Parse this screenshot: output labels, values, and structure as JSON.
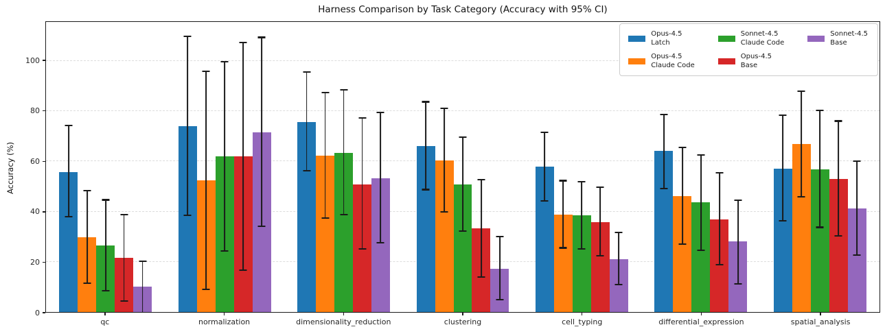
{
  "chart_data": {
    "type": "bar",
    "title": "Harness Comparison by Task Category (Accuracy with 95% CI)",
    "ylabel": "Accuracy (%)",
    "xlabel": "",
    "ylim": [
      0,
      115.5
    ],
    "yticks": [
      0,
      20,
      40,
      60,
      80,
      100
    ],
    "grid": "horizontal-dashed",
    "legend_position": "upper-right-inside-3-columns",
    "error_bars": "95% CI",
    "categories": [
      "qc",
      "normalization",
      "dimensionality_reduction",
      "clustering",
      "cell_typing",
      "differential_expression",
      "spatial_analysis"
    ],
    "series": [
      {
        "name": "Opus-4.5 Latch",
        "legend_label": "Opus-4.5\nLatch",
        "color": "#1f77b4",
        "values": [
          55.7,
          74.1,
          75.7,
          66.1,
          57.9,
          64.1,
          57.2
        ],
        "ci_low": [
          37.9,
          38.5,
          56.2,
          48.7,
          44.3,
          49.1,
          36.4
        ],
        "ci_high": [
          74.3,
          109.7,
          95.7,
          83.7,
          71.6,
          78.7,
          78.5
        ]
      },
      {
        "name": "Opus-4.5 Claude Code",
        "legend_label": "Opus-4.5\nClaude Code",
        "color": "#ff7f0e",
        "values": [
          29.7,
          52.4,
          62.3,
          60.4,
          38.8,
          46.1,
          66.9
        ],
        "ci_low": [
          11.4,
          9.0,
          37.3,
          39.8,
          25.5,
          27.0,
          45.9
        ],
        "ci_high": [
          48.3,
          95.9,
          87.5,
          81.1,
          52.3,
          65.5,
          88.0
        ]
      },
      {
        "name": "Sonnet-4.5 Claude Code",
        "legend_label": "Sonnet-4.5\nClaude Code",
        "color": "#2ca02c",
        "values": [
          26.5,
          62.0,
          63.4,
          50.9,
          38.5,
          43.7,
          56.7
        ],
        "ci_low": [
          8.5,
          24.3,
          38.7,
          32.3,
          25.0,
          24.6,
          33.7
        ],
        "ci_high": [
          44.7,
          99.8,
          88.4,
          69.6,
          52.0,
          62.5,
          80.4
        ]
      },
      {
        "name": "Opus-4.5 Base",
        "legend_label": "Opus-4.5\nBase",
        "color": "#d62728",
        "values": [
          21.6,
          62.0,
          50.9,
          33.4,
          35.7,
          37.0,
          52.9
        ],
        "ci_low": [
          4.4,
          16.6,
          25.0,
          13.8,
          22.3,
          18.8,
          30.2
        ],
        "ci_high": [
          38.7,
          107.3,
          77.3,
          52.7,
          49.7,
          55.5,
          76.1
        ]
      },
      {
        "name": "Sonnet-4.5 Base",
        "legend_label": "Sonnet-4.5\nBase",
        "color": "#9467bd",
        "values": [
          10.0,
          71.6,
          53.2,
          17.3,
          21.1,
          28.2,
          41.2
        ],
        "ci_low": [
          -1.0,
          34.1,
          27.5,
          5.0,
          10.9,
          11.1,
          22.7
        ],
        "ci_high": [
          20.2,
          109.4,
          79.6,
          30.0,
          31.6,
          44.6,
          60.2
        ]
      }
    ],
    "style": {
      "errorbar_color": "#1a1a1a",
      "gridline_color": "#dcdcdc",
      "spine_color": "#1a1a1a",
      "background": "#ffffff"
    }
  }
}
